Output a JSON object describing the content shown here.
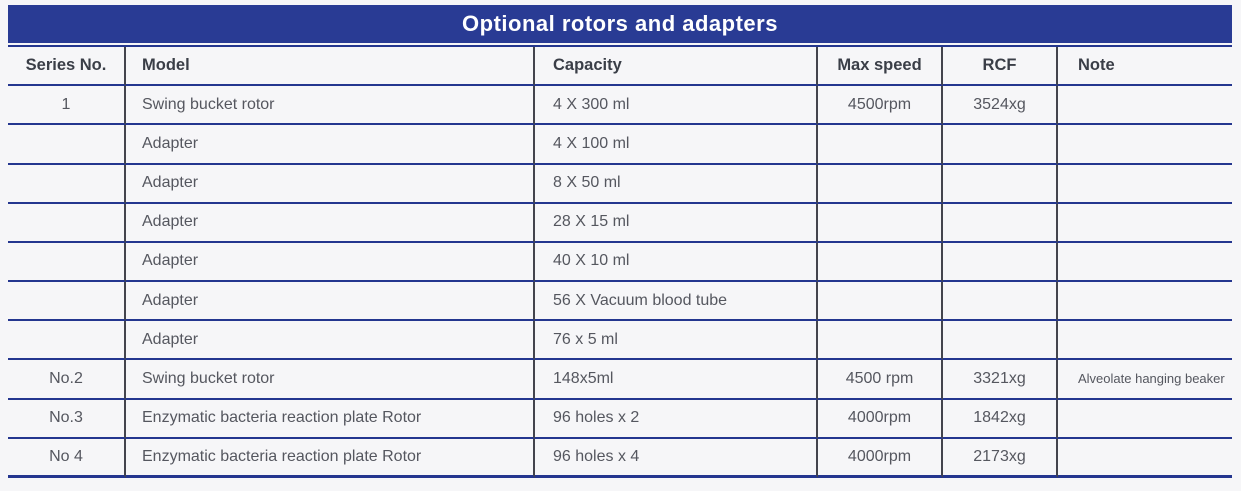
{
  "title": "Optional rotors and adapters",
  "colors": {
    "banner_blue": "#293b94",
    "row_line_navy": "#24368f",
    "column_divider_gray": "#43444d",
    "background": "#f6f6f8",
    "body_text": "#55575f",
    "header_text": "#3a3e47",
    "title_text": "#ffffff"
  },
  "table": {
    "headers": [
      "Series No.",
      "Model",
      "Capacity",
      "Max speed",
      "RCF",
      "Note"
    ],
    "rows": [
      {
        "series": "1",
        "model": "Swing bucket rotor",
        "capacity": "4 X 300 ml",
        "max_speed": "4500rpm",
        "rcf": "3524xg",
        "note": ""
      },
      {
        "series": "",
        "model": "Adapter",
        "capacity": "4 X 100 ml",
        "max_speed": "",
        "rcf": "",
        "note": ""
      },
      {
        "series": "",
        "model": "Adapter",
        "capacity": "8 X 50 ml",
        "max_speed": "",
        "rcf": "",
        "note": ""
      },
      {
        "series": "",
        "model": "Adapter",
        "capacity": "28 X 15 ml",
        "max_speed": "",
        "rcf": "",
        "note": ""
      },
      {
        "series": "",
        "model": "Adapter",
        "capacity": "40 X 10 ml",
        "max_speed": "",
        "rcf": "",
        "note": ""
      },
      {
        "series": "",
        "model": "Adapter",
        "capacity": "56 X Vacuum blood tube",
        "max_speed": "",
        "rcf": "",
        "note": ""
      },
      {
        "series": "",
        "model": "Adapter",
        "capacity": "76 x 5 ml",
        "max_speed": "",
        "rcf": "",
        "note": ""
      },
      {
        "series": "No.2",
        "model": "Swing bucket rotor",
        "capacity": "148x5ml",
        "max_speed": "4500 rpm",
        "rcf": "3321xg",
        "note": "Alveolate hanging beaker"
      },
      {
        "series": "No.3",
        "model": "Enzymatic bacteria reaction plate Rotor",
        "capacity": "96 holes x 2",
        "max_speed": "4000rpm",
        "rcf": "1842xg",
        "note": ""
      },
      {
        "series": "No 4",
        "model": "Enzymatic bacteria reaction plate Rotor",
        "capacity": "96 holes x 4",
        "max_speed": "4000rpm",
        "rcf": "2173xg",
        "note": ""
      }
    ]
  }
}
